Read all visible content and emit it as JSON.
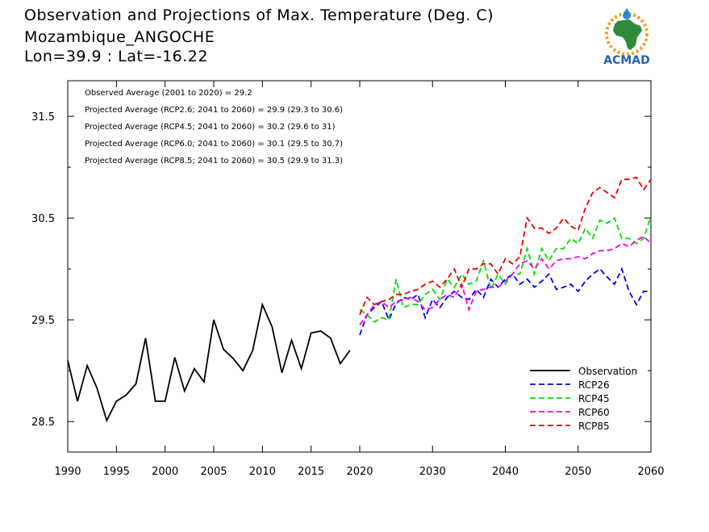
{
  "header": {
    "title": "Observation and Projections of Max. Temperature (Deg. C)",
    "location": "Mozambique_ANGOCHE",
    "coords": "Lon=39.9 : Lat=-16.22"
  },
  "logo": {
    "text": "ACMAD"
  },
  "annotations": [
    "Observed Average (2001 to 2020) = 29.2",
    "Projected Average (RCP2.6; 2041 to 2060) = 29.9 (29.3 to 30.6)",
    "Projected Average (RCP4.5; 2041 to 2060) = 30.2 (29.6 to 31)",
    "Projected Average (RCP6.0; 2041 to 2060) = 30.1 (29.5 to 30.7)",
    "Projected Average (RCP8.5; 2041 to 2060) = 30.5 (29.9 to 31.3)"
  ],
  "chart_data": {
    "type": "line",
    "xlim": [
      1990,
      2060
    ],
    "ylim": [
      28.2,
      31.85
    ],
    "yticks": [
      28.5,
      29.5,
      30.5,
      31.5
    ],
    "yticklabels": [
      "28.5",
      "29.5",
      "30.5",
      "31.5"
    ],
    "xticks_left": [
      1990,
      1995,
      2000,
      2005,
      2010,
      2015,
      2020
    ],
    "xticks_right": [
      2020,
      2030,
      2040,
      2050,
      2060
    ],
    "legend_position": "bottom-right",
    "series": [
      {
        "name": "Observation",
        "color": "#000000",
        "dash": "solid",
        "x": [
          1990,
          1991,
          1992,
          1993,
          1994,
          1995,
          1996,
          1997,
          1998,
          1999,
          2000,
          2001,
          2002,
          2003,
          2004,
          2005,
          2006,
          2007,
          2008,
          2009,
          2010,
          2011,
          2012,
          2013,
          2014,
          2015,
          2016,
          2017,
          2018,
          2019
        ],
        "y": [
          29.1,
          28.7,
          29.05,
          28.83,
          28.51,
          28.7,
          28.76,
          28.87,
          29.32,
          28.7,
          28.7,
          29.13,
          28.8,
          29.02,
          28.89,
          29.5,
          29.21,
          29.12,
          29.0,
          29.2,
          29.65,
          29.43,
          28.98,
          29.3,
          29.02,
          29.37,
          29.39,
          29.32,
          29.07,
          29.2
        ]
      },
      {
        "name": "RCP26",
        "color": "#0000ff",
        "dash": "dashed",
        "x": [
          2020,
          2021,
          2022,
          2023,
          2024,
          2025,
          2026,
          2027,
          2028,
          2029,
          2030,
          2031,
          2032,
          2033,
          2034,
          2035,
          2036,
          2037,
          2038,
          2039,
          2040,
          2041,
          2042,
          2043,
          2044,
          2045,
          2046,
          2047,
          2048,
          2049,
          2050,
          2051,
          2052,
          2053,
          2054,
          2055,
          2056,
          2057,
          2058,
          2059,
          2060
        ],
        "y": [
          29.35,
          29.55,
          29.62,
          29.68,
          29.5,
          29.66,
          29.72,
          29.7,
          29.75,
          29.52,
          29.7,
          29.62,
          29.72,
          29.78,
          29.72,
          29.7,
          29.8,
          29.72,
          29.9,
          29.82,
          29.9,
          29.95,
          29.85,
          29.9,
          29.82,
          29.88,
          29.95,
          29.8,
          29.82,
          29.85,
          29.78,
          29.88,
          29.95,
          30.0,
          29.92,
          29.85,
          30.0,
          29.78,
          29.65,
          29.78,
          29.78
        ]
      },
      {
        "name": "RCP45",
        "color": "#00dd00",
        "dash": "dashed",
        "x": [
          2020,
          2021,
          2022,
          2023,
          2024,
          2025,
          2026,
          2027,
          2028,
          2029,
          2030,
          2031,
          2032,
          2033,
          2034,
          2035,
          2036,
          2037,
          2038,
          2039,
          2040,
          2041,
          2042,
          2043,
          2044,
          2045,
          2046,
          2047,
          2048,
          2049,
          2050,
          2051,
          2052,
          2053,
          2054,
          2055,
          2056,
          2057,
          2058,
          2059,
          2060
        ],
        "y": [
          29.6,
          29.55,
          29.48,
          29.52,
          29.5,
          29.9,
          29.62,
          29.65,
          29.65,
          29.75,
          29.8,
          29.7,
          29.9,
          29.82,
          29.95,
          29.85,
          29.88,
          30.08,
          29.8,
          29.95,
          29.85,
          29.95,
          29.95,
          30.2,
          29.95,
          30.2,
          30.08,
          30.2,
          30.2,
          30.3,
          30.25,
          30.4,
          30.3,
          30.48,
          30.45,
          30.5,
          30.3,
          30.3,
          30.25,
          30.3,
          30.52
        ]
      },
      {
        "name": "RCP60",
        "color": "#ee00ee",
        "dash": "dashed",
        "x": [
          2020,
          2021,
          2022,
          2023,
          2024,
          2025,
          2026,
          2027,
          2028,
          2029,
          2030,
          2031,
          2032,
          2033,
          2034,
          2035,
          2036,
          2037,
          2038,
          2039,
          2040,
          2041,
          2042,
          2043,
          2044,
          2045,
          2046,
          2047,
          2048,
          2049,
          2050,
          2051,
          2052,
          2053,
          2054,
          2055,
          2056,
          2057,
          2058,
          2059,
          2060
        ],
        "y": [
          29.45,
          29.55,
          29.65,
          29.68,
          29.62,
          29.68,
          29.7,
          29.72,
          29.68,
          29.6,
          29.62,
          29.7,
          29.75,
          29.72,
          29.85,
          29.6,
          29.78,
          29.8,
          29.82,
          29.82,
          29.88,
          29.95,
          30.05,
          30.08,
          30.0,
          30.1,
          30.0,
          30.08,
          30.1,
          30.1,
          30.12,
          30.1,
          30.15,
          30.18,
          30.18,
          30.2,
          30.25,
          30.22,
          30.28,
          30.32,
          30.25
        ]
      },
      {
        "name": "RCP85",
        "color": "#ee0000",
        "dash": "dashed",
        "x": [
          2020,
          2021,
          2022,
          2023,
          2024,
          2025,
          2026,
          2027,
          2028,
          2029,
          2030,
          2031,
          2032,
          2033,
          2034,
          2035,
          2036,
          2037,
          2038,
          2039,
          2040,
          2041,
          2042,
          2043,
          2044,
          2045,
          2046,
          2047,
          2048,
          2049,
          2050,
          2051,
          2052,
          2053,
          2054,
          2055,
          2056,
          2057,
          2058,
          2059,
          2060
        ],
        "y": [
          29.55,
          29.72,
          29.65,
          29.68,
          29.7,
          29.75,
          29.75,
          29.78,
          29.8,
          29.85,
          29.88,
          29.82,
          29.9,
          30.0,
          29.82,
          30.0,
          30.0,
          30.05,
          30.05,
          29.95,
          30.1,
          30.05,
          30.12,
          30.5,
          30.4,
          30.4,
          30.35,
          30.4,
          30.5,
          30.42,
          30.38,
          30.6,
          30.75,
          30.8,
          30.75,
          30.7,
          30.88,
          30.88,
          30.9,
          30.78,
          30.88
        ]
      }
    ]
  }
}
